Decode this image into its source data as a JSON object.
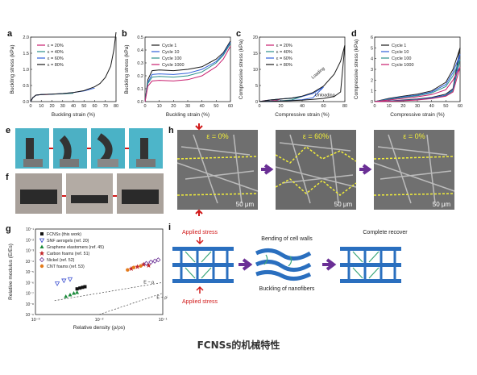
{
  "figure": {
    "caption": "FCNSs的机械特性",
    "panel_letters": [
      "a",
      "b",
      "c",
      "d",
      "e",
      "f",
      "g",
      "h",
      "i"
    ]
  },
  "colors": {
    "c1": "#1a1a1a",
    "c2": "#2f5fd8",
    "c3": "#2a8f8a",
    "c4": "#c81e6e",
    "c5": "#c3272b",
    "arrow_red": "#d11a1a",
    "arrow_purple": "#6a2f95",
    "dash_yellow": "#f2ee3a",
    "struct_blue": "#2a6fbf",
    "fiber_green": "#3aa67a"
  },
  "chart_data": [
    {
      "id": "a",
      "type": "line",
      "xlabel": "Buckling strain (%)",
      "ylabel": "Buckling stress (kPa)",
      "xlim": [
        0,
        80
      ],
      "ylim": [
        0,
        2.0
      ],
      "xticks": [
        0,
        10,
        20,
        30,
        40,
        50,
        60,
        70,
        80
      ],
      "yticks": [
        0.0,
        0.5,
        1.0,
        1.5,
        2.0
      ],
      "ytick_labels": [
        "0.0",
        "0.5",
        "1.0",
        "1.5",
        "2.0"
      ],
      "legend_pos": "top-left",
      "series": [
        {
          "name": "ε = 20%",
          "color": "#c81e6e",
          "x": [
            0,
            2,
            5,
            10,
            15,
            20
          ],
          "y": [
            0,
            0.12,
            0.2,
            0.22,
            0.22,
            0.23
          ]
        },
        {
          "name": "ε = 40%",
          "color": "#2a8f8a",
          "x": [
            0,
            2,
            5,
            10,
            20,
            30,
            40
          ],
          "y": [
            0,
            0.12,
            0.2,
            0.22,
            0.23,
            0.24,
            0.26
          ]
        },
        {
          "name": "ε = 60%",
          "color": "#2f5fd8",
          "x": [
            0,
            2,
            5,
            10,
            20,
            30,
            40,
            50,
            60
          ],
          "y": [
            0,
            0.12,
            0.2,
            0.22,
            0.23,
            0.25,
            0.28,
            0.33,
            0.42
          ]
        },
        {
          "name": "ε = 80%",
          "color": "#1a1a1a",
          "x": [
            0,
            2,
            5,
            10,
            20,
            30,
            40,
            50,
            60,
            65,
            70,
            75,
            78,
            80
          ],
          "y": [
            0,
            0.12,
            0.2,
            0.22,
            0.23,
            0.25,
            0.28,
            0.34,
            0.46,
            0.56,
            0.75,
            1.1,
            1.6,
            2.15
          ]
        }
      ]
    },
    {
      "id": "b",
      "type": "line",
      "xlabel": "Buckling  strain (%)",
      "ylabel": "Buckling stress (kPa)",
      "xlim": [
        0,
        60
      ],
      "ylim": [
        0,
        0.5
      ],
      "xticks": [
        0,
        10,
        20,
        30,
        40,
        50,
        60
      ],
      "yticks": [
        0.0,
        0.1,
        0.2,
        0.3,
        0.4,
        0.5
      ],
      "ytick_labels": [
        "0.0",
        "0.1",
        "0.2",
        "0.3",
        "0.4",
        "0.5"
      ],
      "legend_pos": "top-left",
      "series": [
        {
          "name": "Cycle 1",
          "color": "#1a1a1a",
          "x": [
            0,
            2,
            5,
            10,
            20,
            30,
            40,
            50,
            55,
            60
          ],
          "y": [
            0,
            0.17,
            0.24,
            0.245,
            0.24,
            0.25,
            0.27,
            0.33,
            0.38,
            0.47
          ]
        },
        {
          "name": "Cycle 10",
          "color": "#2f5fd8",
          "x": [
            0,
            2,
            5,
            10,
            20,
            30,
            40,
            50,
            55,
            60
          ],
          "y": [
            0,
            0.15,
            0.21,
            0.215,
            0.21,
            0.22,
            0.25,
            0.31,
            0.37,
            0.46
          ]
        },
        {
          "name": "Cycle 100",
          "color": "#2a8f8a",
          "x": [
            0,
            2,
            5,
            10,
            20,
            30,
            40,
            50,
            55,
            60
          ],
          "y": [
            0,
            0.14,
            0.19,
            0.195,
            0.19,
            0.2,
            0.23,
            0.3,
            0.36,
            0.45
          ]
        },
        {
          "name": "Cycle 1000",
          "color": "#c81e6e",
          "x": [
            0,
            2,
            5,
            10,
            20,
            30,
            40,
            50,
            55,
            60
          ],
          "y": [
            0,
            0.12,
            0.16,
            0.165,
            0.16,
            0.17,
            0.2,
            0.27,
            0.33,
            0.43
          ]
        }
      ]
    },
    {
      "id": "c",
      "type": "line",
      "xlabel": "Compressive strain (%)",
      "ylabel": "Compressive stress (kPa)",
      "xlim": [
        0,
        80
      ],
      "ylim": [
        0,
        20
      ],
      "xticks": [
        0,
        20,
        40,
        60,
        80
      ],
      "yticks": [
        0,
        5,
        10,
        15,
        20
      ],
      "ytick_labels": [
        "0",
        "5",
        "10",
        "15",
        "20"
      ],
      "legend_pos": "top-left",
      "annotations": [
        "Loading",
        "Unloading"
      ],
      "series": [
        {
          "name": "ε = 20%",
          "color": "#c81e6e",
          "x": [
            0,
            5,
            10,
            15,
            20,
            15,
            10,
            5,
            0
          ],
          "y": [
            0,
            0.3,
            0.5,
            0.6,
            0.8,
            0.3,
            0.15,
            0.05,
            0
          ]
        },
        {
          "name": "ε = 40%",
          "color": "#2a8f8a",
          "x": [
            0,
            10,
            20,
            30,
            40,
            30,
            20,
            10,
            0
          ],
          "y": [
            0,
            0.5,
            0.8,
            1.0,
            1.6,
            0.5,
            0.25,
            0.1,
            0
          ]
        },
        {
          "name": "ε = 60%",
          "color": "#2f5fd8",
          "x": [
            0,
            10,
            20,
            30,
            40,
            50,
            60,
            50,
            40,
            30,
            20,
            10,
            0
          ],
          "y": [
            0,
            0.5,
            0.8,
            1.1,
            1.6,
            2.5,
            4.5,
            1.2,
            0.6,
            0.35,
            0.2,
            0.08,
            0
          ]
        },
        {
          "name": "ε = 80%",
          "color": "#1a1a1a",
          "x": [
            0,
            10,
            20,
            30,
            40,
            50,
            60,
            70,
            76,
            80,
            76,
            70,
            60,
            50,
            40,
            30,
            20,
            10,
            0
          ],
          "y": [
            0,
            0.5,
            0.8,
            1.1,
            1.7,
            2.8,
            4.8,
            8.5,
            12.5,
            17.5,
            3.0,
            1.6,
            1.0,
            0.7,
            0.45,
            0.3,
            0.2,
            0.08,
            0
          ]
        }
      ]
    },
    {
      "id": "d",
      "type": "line",
      "xlabel": "Compressive strain (%)",
      "ylabel": "Compressive stress (kPa)",
      "xlim": [
        0,
        60
      ],
      "ylim": [
        0,
        6
      ],
      "xticks": [
        0,
        10,
        20,
        30,
        40,
        50,
        60
      ],
      "yticks": [
        0,
        1,
        2,
        3,
        4,
        5,
        6
      ],
      "ytick_labels": [
        "0",
        "1",
        "2",
        "3",
        "4",
        "5",
        "6"
      ],
      "legend_pos": "top-left",
      "series": [
        {
          "name": "Cycle 1",
          "color": "#1a1a1a",
          "x": [
            0,
            10,
            20,
            30,
            40,
            50,
            55,
            60,
            55,
            50,
            40,
            30,
            20,
            10,
            0
          ],
          "y": [
            0,
            0.3,
            0.5,
            0.7,
            1.0,
            1.8,
            3.0,
            5.0,
            1.2,
            0.7,
            0.4,
            0.25,
            0.15,
            0.06,
            0
          ]
        },
        {
          "name": "Cycle 10",
          "color": "#2f5fd8",
          "x": [
            0,
            10,
            20,
            30,
            40,
            50,
            55,
            60,
            55,
            50,
            40,
            30,
            20,
            10,
            0
          ],
          "y": [
            0,
            0.25,
            0.45,
            0.6,
            0.9,
            1.6,
            2.7,
            4.4,
            1.1,
            0.6,
            0.35,
            0.2,
            0.12,
            0.05,
            0
          ]
        },
        {
          "name": "Cycle 100",
          "color": "#2a8f8a",
          "x": [
            0,
            10,
            20,
            30,
            40,
            50,
            55,
            60,
            55,
            50,
            40,
            30,
            20,
            10,
            0
          ],
          "y": [
            0,
            0.2,
            0.4,
            0.55,
            0.8,
            1.4,
            2.4,
            3.9,
            1.0,
            0.55,
            0.3,
            0.18,
            0.1,
            0.04,
            0
          ]
        },
        {
          "name": "Cycle 1000",
          "color": "#c81e6e",
          "x": [
            0,
            10,
            20,
            30,
            40,
            50,
            55,
            60,
            55,
            50,
            40,
            30,
            20,
            10,
            0
          ],
          "y": [
            0,
            0.15,
            0.3,
            0.45,
            0.65,
            1.1,
            2.0,
            3.2,
            0.9,
            0.5,
            0.28,
            0.15,
            0.08,
            0.03,
            0
          ]
        }
      ]
    },
    {
      "id": "g",
      "type": "scatter",
      "xlabel": "Relative density (ρ/ρs)",
      "ylabel": "Relative modulus (E/Es)",
      "xlim_exp": [
        -3,
        -1
      ],
      "ylim_exp": [
        -9,
        -1
      ],
      "log_x": true,
      "log_y": true,
      "xtick_labels": [
        "10⁻³",
        "10⁻²",
        "10⁻¹"
      ],
      "ytick_labels": [
        "10⁻¹",
        "10⁻²",
        "10⁻³",
        "10⁻⁴",
        "10⁻⁵",
        "10⁻⁶",
        "10⁻⁷",
        "10⁻⁸",
        "10⁻⁹"
      ],
      "legend_pos": "top-left",
      "guide_lines": [
        "E ~ ρ",
        "E ~ ρ²"
      ],
      "series": [
        {
          "name": "FCNSs (this work)",
          "marker": "square",
          "color": "#111111",
          "x": [
            0.0045,
            0.005,
            0.0055,
            0.006
          ],
          "y": [
            2.5e-07,
            3e-07,
            3.5e-07,
            4e-07
          ]
        },
        {
          "name": "SNF aerogels (ref. 20)",
          "marker": "tri-down",
          "color": "#3b4fd0",
          "x": [
            0.0022,
            0.0028,
            0.0035
          ],
          "y": [
            8e-07,
            1.5e-06,
            2e-06
          ]
        },
        {
          "name": "Graphene elastomers (ref. 45)",
          "marker": "tri-up",
          "color": "#1a8a3a",
          "x": [
            0.003,
            0.0035,
            0.004,
            0.0045
          ],
          "y": [
            5e-08,
            7e-08,
            1e-07,
            1.2e-07
          ]
        },
        {
          "name": "Carbon foams (ref. 51)",
          "marker": "star",
          "color": "#c3272b",
          "x": [
            0.032,
            0.04,
            0.05,
            0.06
          ],
          "y": [
            2e-05,
            3e-05,
            5e-05,
            4e-05
          ]
        },
        {
          "name": "Nickel (ref. 52)",
          "marker": "diamond",
          "color": "#6a2f95",
          "x": [
            0.055,
            0.065,
            0.075,
            0.085
          ],
          "y": [
            6e-05,
            8e-05,
            0.0001,
            0.00013
          ]
        },
        {
          "name": "CNT foams (ref. 53)",
          "marker": "hexagon",
          "color": "#e37b1c",
          "x": [
            0.028,
            0.035,
            0.045
          ],
          "y": [
            1.5e-05,
            2.5e-05,
            3.5e-05
          ]
        }
      ]
    }
  ],
  "panel_h": {
    "labels": [
      "ε = 0%",
      "ε = 60%",
      "ε = 0%"
    ],
    "scale_bars": [
      "50 μm",
      "50 μm",
      "50 μm"
    ],
    "top_arrow_label": "",
    "bottom_arrow_label": ""
  },
  "panel_i": {
    "applied_top": "Applied stress",
    "applied_bottom": "Applied stress",
    "bending": "Bending of cell walls",
    "buckling": "Buckling of nanofibers",
    "recover": "Complete recover"
  }
}
